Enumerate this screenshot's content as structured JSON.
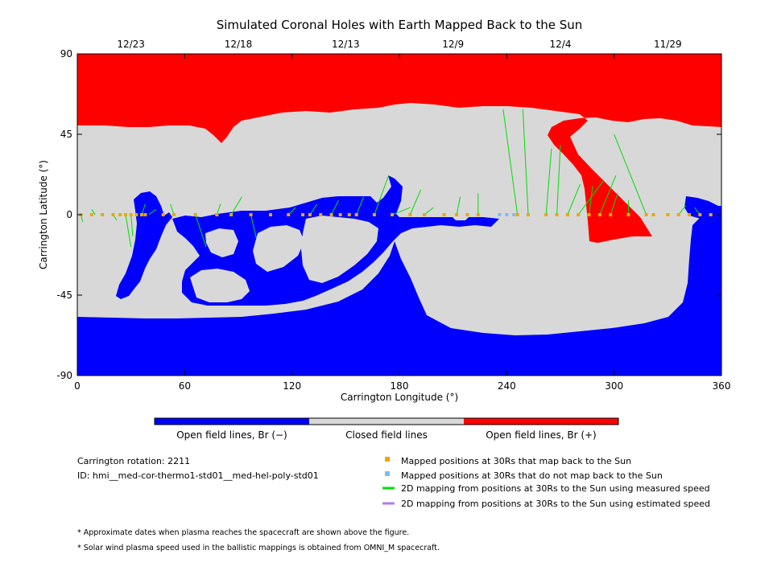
{
  "chart_data": {
    "type": "map",
    "title": "Simulated Coronal Holes with Earth Mapped Back to the Sun",
    "xlabel": "Carrington Longitude (°)",
    "ylabel": "Carrington Latitude (°)",
    "xlim": [
      0,
      360
    ],
    "ylim": [
      -90,
      90
    ],
    "xticks": [
      0,
      60,
      120,
      180,
      240,
      300,
      360
    ],
    "yticks": [
      -90,
      -45,
      0,
      45,
      90
    ],
    "top_date_ticks": [
      {
        "label": "12/23",
        "lon": 30
      },
      {
        "label": "12/18",
        "lon": 90
      },
      {
        "label": "12/13",
        "lon": 150
      },
      {
        "label": "12/9",
        "lon": 210
      },
      {
        "label": "12/4",
        "lon": 270
      },
      {
        "label": "11/29",
        "lon": 330
      }
    ],
    "colors": {
      "open_negative": "#0000ff",
      "closed": "#d8d8d8",
      "open_positive": "#ff0000",
      "mapped": "#e8a800",
      "not_mapped": "#7ebcf0",
      "measured_line": "#00dd00",
      "estimated_line": "#b07ee8"
    },
    "colorbar": [
      {
        "label": "Open field lines, Br (−)",
        "color": "#0000ff"
      },
      {
        "label": "Closed field lines",
        "color": "#d8d8d8"
      },
      {
        "label": "Open field lines, Br (+)",
        "color": "#ff0000"
      }
    ],
    "mapped_points_lon": [
      2,
      8,
      14,
      20,
      24,
      27,
      30,
      33,
      36,
      38,
      48,
      54,
      66,
      78,
      86,
      97,
      108,
      118,
      126,
      130,
      136,
      142,
      147,
      152,
      156,
      166,
      176,
      186,
      194,
      205,
      212,
      218,
      224,
      246,
      252,
      262,
      268,
      274,
      280,
      286,
      292,
      298,
      308,
      318,
      322,
      330,
      336,
      342,
      348,
      354
    ],
    "not_mapped_points_lon": [
      236,
      240,
      244
    ],
    "measured_mapping_lines": [
      [
        [
          2,
          0
        ],
        [
          3,
          -4
        ]
      ],
      [
        [
          10,
          0
        ],
        [
          8,
          3
        ]
      ],
      [
        [
          20,
          0
        ],
        [
          22,
          -3
        ]
      ],
      [
        [
          27,
          0
        ],
        [
          30,
          -18
        ]
      ],
      [
        [
          30,
          0
        ],
        [
          31,
          -12
        ]
      ],
      [
        [
          36,
          0
        ],
        [
          38,
          6
        ]
      ],
      [
        [
          40,
          0
        ],
        [
          44,
          3
        ]
      ],
      [
        [
          54,
          0
        ],
        [
          52,
          6
        ]
      ],
      [
        [
          66,
          0
        ],
        [
          72,
          -18
        ]
      ],
      [
        [
          78,
          0
        ],
        [
          80,
          6
        ]
      ],
      [
        [
          86,
          0
        ],
        [
          92,
          10
        ]
      ],
      [
        [
          97,
          0
        ],
        [
          100,
          -13
        ]
      ],
      [
        [
          118,
          0
        ],
        [
          122,
          4
        ]
      ],
      [
        [
          130,
          0
        ],
        [
          134,
          6
        ]
      ],
      [
        [
          142,
          0
        ],
        [
          146,
          8
        ]
      ],
      [
        [
          156,
          0
        ],
        [
          160,
          10
        ]
      ],
      [
        [
          166,
          0
        ],
        [
          174,
          22
        ]
      ],
      [
        [
          176,
          0
        ],
        [
          186,
          4
        ]
      ],
      [
        [
          186,
          0
        ],
        [
          192,
          14
        ]
      ],
      [
        [
          194,
          0
        ],
        [
          199,
          4
        ]
      ],
      [
        [
          212,
          0
        ],
        [
          214,
          10
        ]
      ],
      [
        [
          224,
          0
        ],
        [
          224,
          12
        ]
      ],
      [
        [
          246,
          0
        ],
        [
          238,
          59
        ]
      ],
      [
        [
          252,
          0
        ],
        [
          249,
          59
        ]
      ],
      [
        [
          262,
          0
        ],
        [
          265,
          37
        ]
      ],
      [
        [
          268,
          0
        ],
        [
          270,
          39
        ]
      ],
      [
        [
          274,
          0
        ],
        [
          281,
          17
        ]
      ],
      [
        [
          280,
          0
        ],
        [
          294,
          19
        ]
      ],
      [
        [
          286,
          0
        ],
        [
          288,
          16
        ]
      ],
      [
        [
          292,
          0
        ],
        [
          301,
          22
        ]
      ],
      [
        [
          298,
          0
        ],
        [
          302,
          12
        ]
      ],
      [
        [
          308,
          0
        ],
        [
          308,
          8
        ]
      ],
      [
        [
          318,
          0
        ],
        [
          300,
          45
        ]
      ],
      [
        [
          336,
          0
        ],
        [
          340,
          5
        ]
      ],
      [
        [
          348,
          0
        ],
        [
          345,
          4
        ]
      ]
    ],
    "carrington_rotation": "Carrington rotation: 2211",
    "model_id": "ID: hmi__med-cor-thermo1-std01__med-hel-poly-std01",
    "legend": [
      {
        "label": "Mapped positions at 30Rs that map back to the Sun",
        "kind": "square",
        "color": "#e8a800"
      },
      {
        "label": "Mapped positions at 30Rs that do not map back to the Sun",
        "kind": "square",
        "color": "#7ebcf0"
      },
      {
        "label": "2D mapping from positions at 30Rs to the Sun using measured speed",
        "kind": "line",
        "color": "#00dd00"
      },
      {
        "label": "2D mapping from positions at 30Rs to the Sun using estimated speed",
        "kind": "line",
        "color": "#b07ee8"
      }
    ],
    "footnotes": [
      "* Approximate dates when plasma reaches the spacecraft are shown above the figure.",
      "* Solar wind plasma speed used in the ballistic mappings is obtained from OMNI_M spacecraft."
    ]
  }
}
